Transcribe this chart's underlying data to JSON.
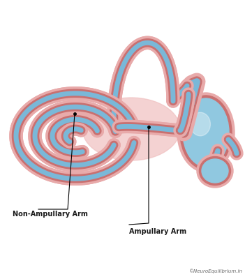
{
  "bg_color": "#ffffff",
  "pink_light": "#e8aaaa",
  "pink_dark": "#c97070",
  "blue_canal": "#7ab8d8",
  "blue_utricle": "#90c8e0",
  "pink_soft": "#f0c0c0",
  "label1": "Non-Ampullary Arm",
  "label2": "Ampullary Arm",
  "watermark": "©NeuroEquilibrium.in",
  "label_color": "#1a1a1a",
  "watermark_color": "#666666",
  "lw_outer": 14,
  "lw_mid": 9,
  "lw_blue": 5
}
